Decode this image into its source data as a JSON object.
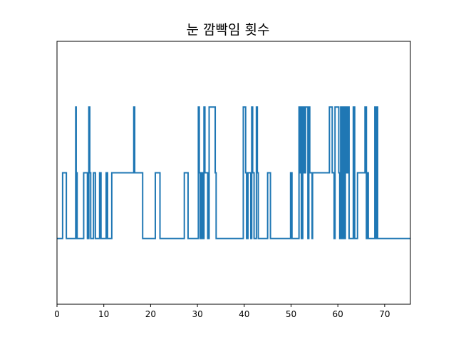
{
  "chart_data": {
    "type": "line",
    "title": "눈 깜빡임 횟수",
    "xlabel": "",
    "ylabel": "",
    "xlim": [
      0,
      75.5
    ],
    "ylim": [
      -1,
      3
    ],
    "x_ticks": [
      0,
      10,
      20,
      30,
      40,
      50,
      60,
      70
    ],
    "x_tick_labels": [
      "0",
      "10",
      "20",
      "30",
      "40",
      "50",
      "60",
      "70"
    ],
    "y_ticks_visible": false,
    "grid": false,
    "line_style": "step",
    "color": "#1f77b4",
    "series": [
      {
        "x": [
          0,
          1.2,
          1.4,
          1.6,
          2.0,
          4.0,
          4.1,
          4.3,
          5.7,
          6.5,
          6.8,
          7.0,
          7.2,
          7.8,
          8.2,
          9.1,
          9.4,
          10.5,
          10.8,
          11.7,
          16.4,
          16.6,
          18.3,
          21.0,
          22.0,
          27.2,
          28.0,
          30.2,
          30.4,
          30.6,
          30.9,
          31.1,
          31.4,
          31.6,
          32.2,
          32.5,
          33.8,
          34.0,
          39.8,
          40.3,
          40.5,
          40.8,
          41.4,
          41.6,
          41.8,
          42.1,
          42.6,
          42.8,
          43.0,
          45.0,
          45.6,
          49.9,
          50.2,
          51.7,
          51.8,
          52.0,
          52.2,
          52.5,
          52.8,
          53.1,
          53.6,
          53.8,
          54.0,
          54.5,
          54.6,
          57.9,
          58.2,
          58.8,
          59.2,
          59.4,
          60.2,
          60.4,
          60.6,
          60.8,
          61.1,
          61.3,
          61.6,
          61.9,
          62.1,
          62.4,
          63.3,
          63.6,
          64.2,
          65.8,
          66.1,
          66.2,
          66.5,
          67.9,
          68.1,
          68.3,
          68.5,
          68.8,
          75.5
        ],
        "y": [
          0,
          1,
          1,
          1,
          0,
          2,
          1,
          0,
          1,
          0,
          2,
          1,
          0,
          1,
          0,
          1,
          0,
          1,
          0,
          1,
          2,
          1,
          0,
          1,
          0,
          1,
          0,
          2,
          1,
          0,
          1,
          0,
          2,
          1,
          0,
          2,
          1,
          0,
          2,
          1,
          0,
          1,
          0,
          2,
          1,
          0,
          2,
          1,
          0,
          1,
          0,
          1,
          0,
          2,
          1,
          2,
          0,
          2,
          1,
          2,
          0,
          2,
          1,
          0,
          1,
          1,
          2,
          1,
          0,
          2,
          1,
          0,
          2,
          0,
          2,
          0,
          2,
          1,
          2,
          0,
          2,
          0,
          1,
          2,
          0,
          1,
          0,
          2,
          0,
          2,
          0,
          0,
          0
        ]
      }
    ]
  }
}
